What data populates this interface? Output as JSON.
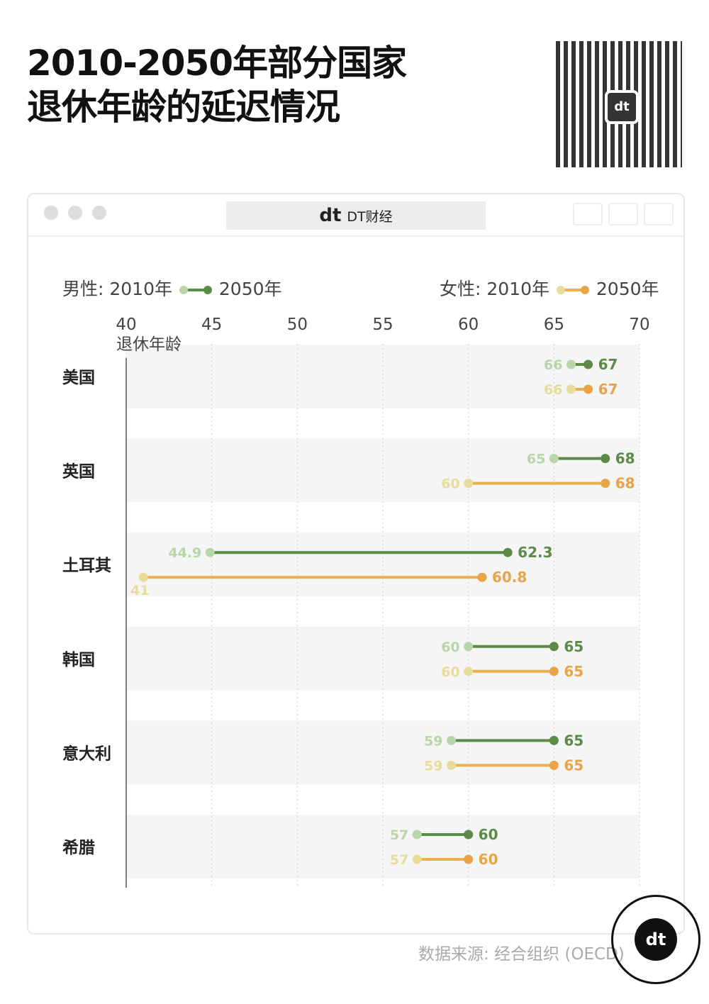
{
  "title_lines": [
    "2010-2050年部分国家",
    "退休年龄的延迟情况"
  ],
  "window": {
    "tab_label": "DT财经",
    "tab_logo": "dt"
  },
  "legend": {
    "male": "男性: 2010年",
    "male_end": "2050年",
    "female": "女性: 2010年",
    "female_end": "2050年"
  },
  "source": "数据来源: 经合组织 (OECD)",
  "badge_logo": "dt",
  "colors": {
    "male_2010": "#b9d6a8",
    "male_2050": "#5c8a47",
    "female_2010": "#e8dd98",
    "female_2050": "#e8a446",
    "band": "#f5f5f5"
  },
  "chart_data": {
    "type": "dumbbell",
    "xlabel": "退休年龄",
    "xlim": [
      40,
      70
    ],
    "xticks": [
      40,
      45,
      50,
      55,
      60,
      65,
      70
    ],
    "categories": [
      "美国",
      "英国",
      "土耳其",
      "韩国",
      "意大利",
      "希腊"
    ],
    "series": [
      {
        "name": "男性",
        "start_label": "2010年",
        "end_label": "2050年",
        "start": [
          66,
          65,
          44.9,
          60,
          59,
          57
        ],
        "end": [
          67,
          68,
          62.3,
          65,
          65,
          60
        ]
      },
      {
        "name": "女性",
        "start_label": "2010年",
        "end_label": "2050年",
        "start": [
          66,
          60,
          41,
          60,
          59,
          57
        ],
        "end": [
          67,
          68,
          60.8,
          65,
          65,
          60
        ]
      }
    ]
  }
}
